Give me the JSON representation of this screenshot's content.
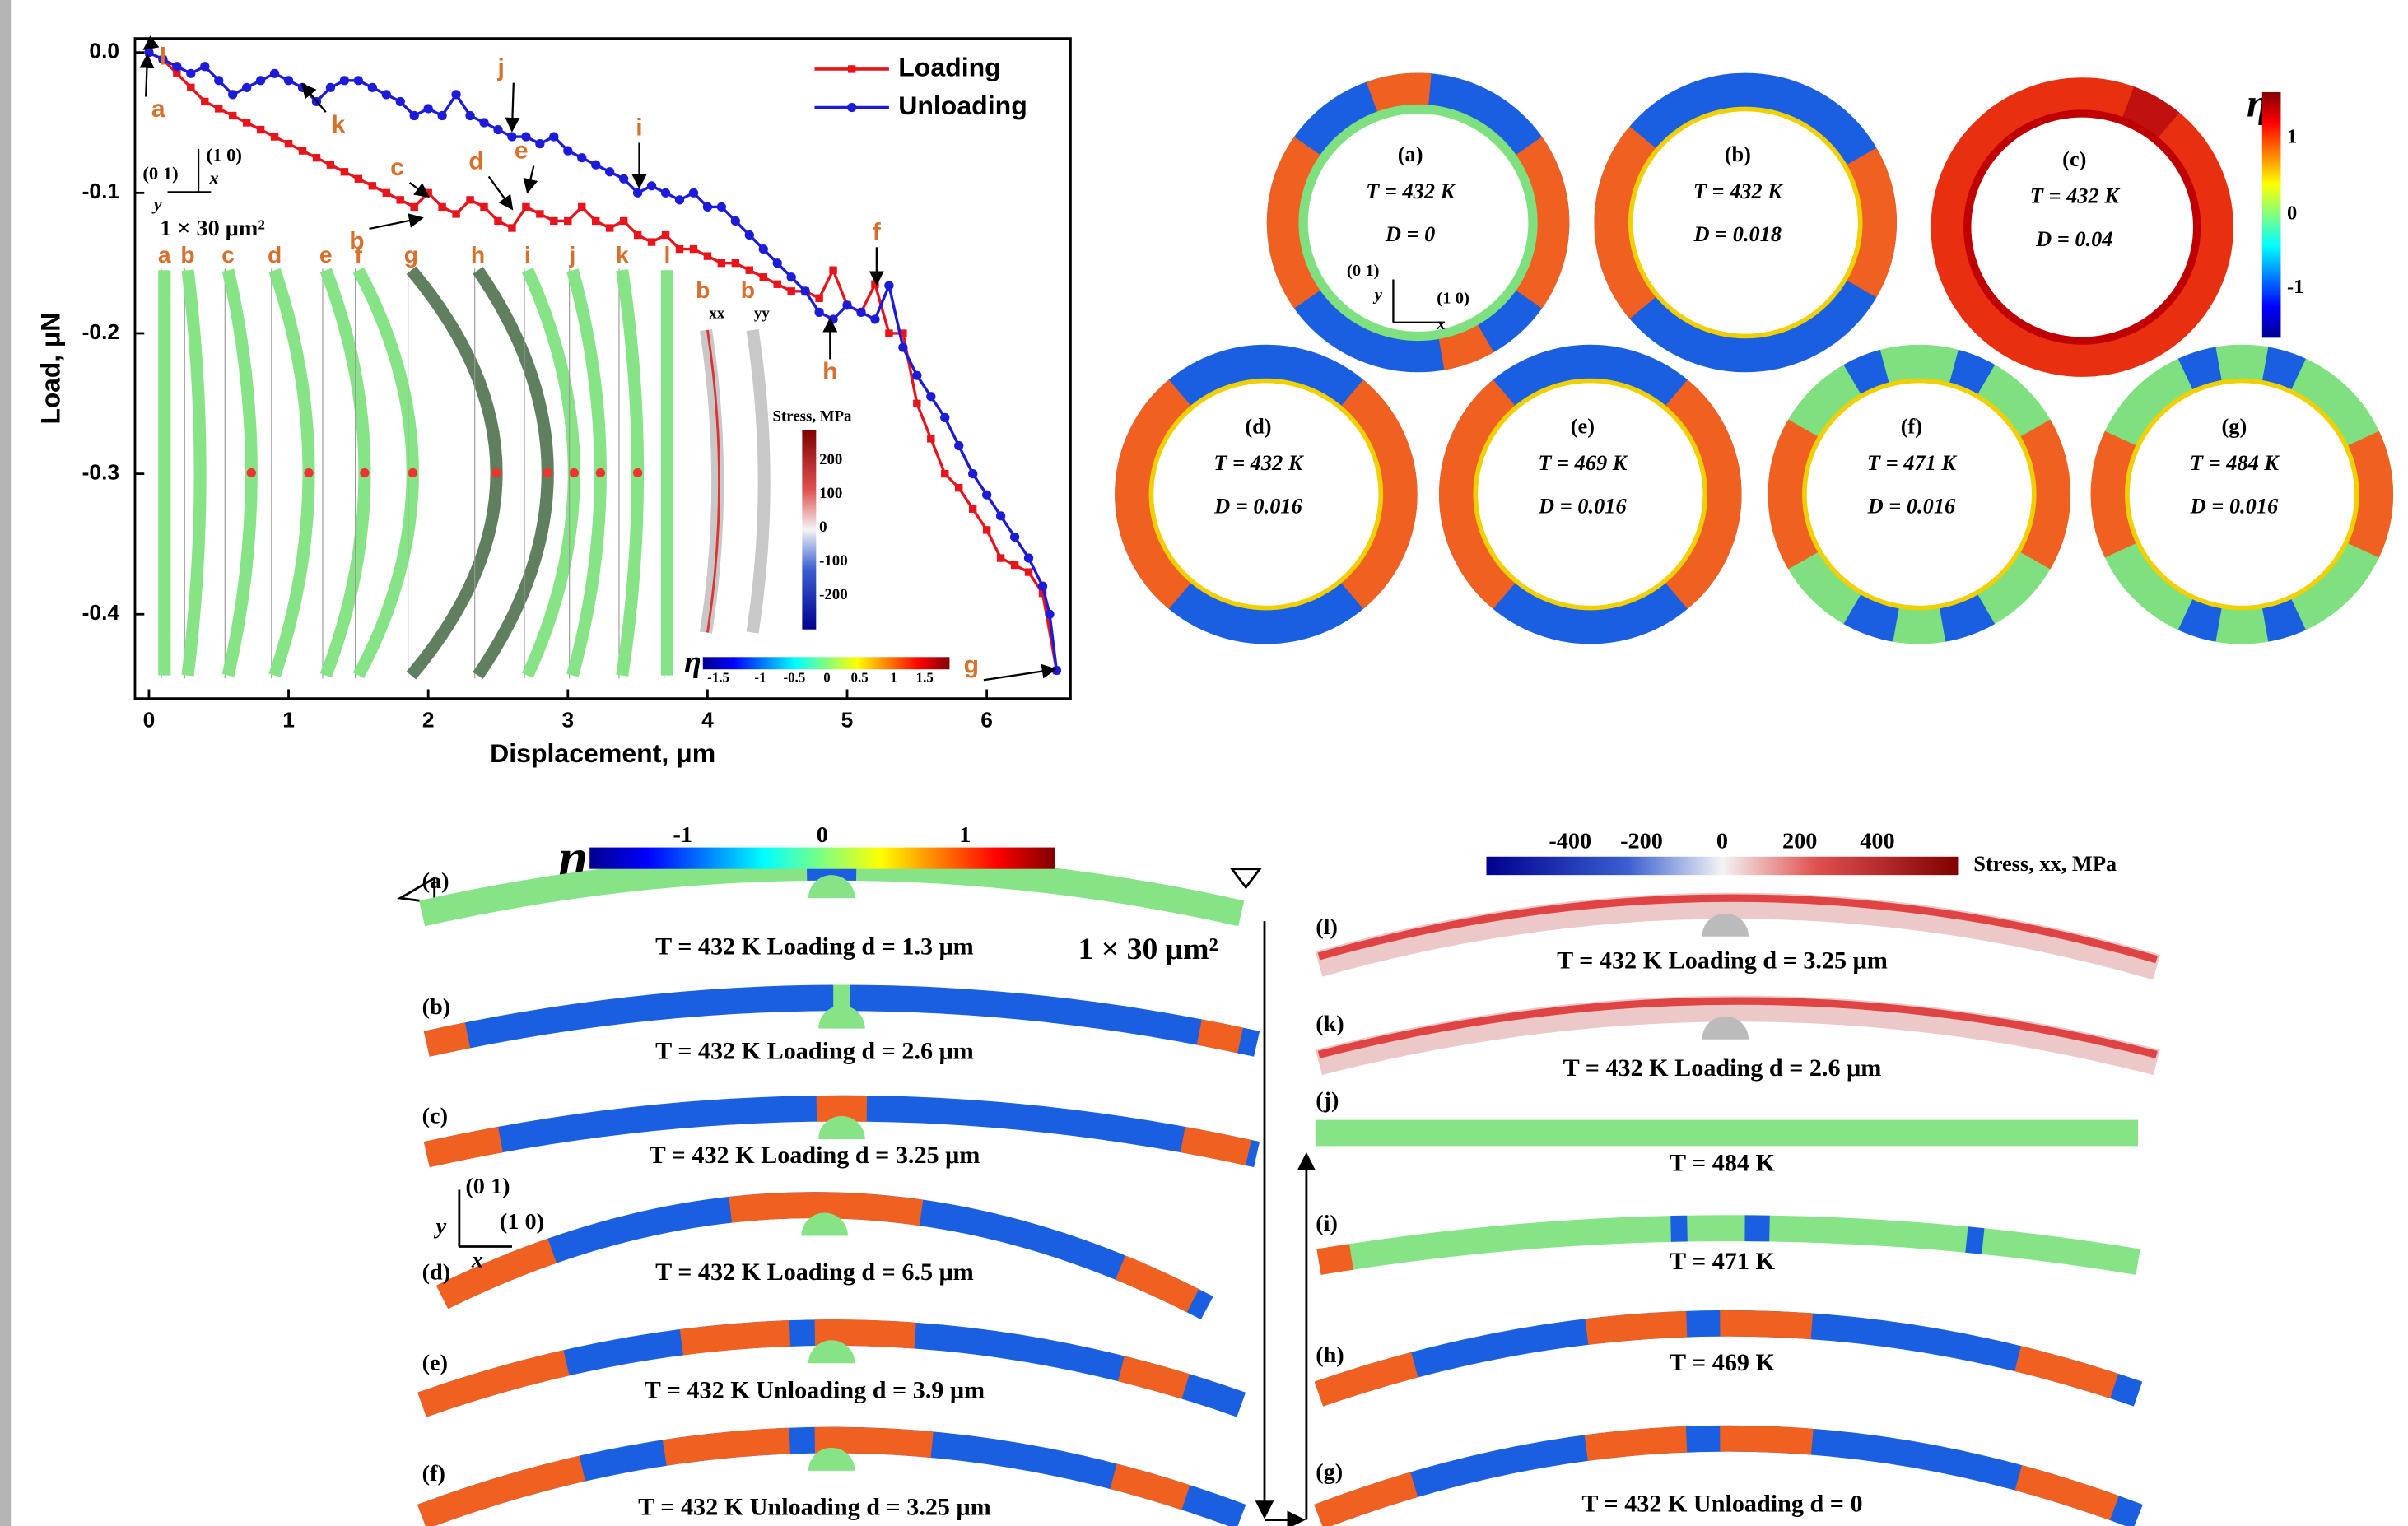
{
  "chart_data": {
    "type": "line",
    "xlabel": "Displacement, μm",
    "ylabel": "Load, μN",
    "xlim": [
      -0.1,
      6.6
    ],
    "ylim": [
      -0.46,
      0.01
    ],
    "xticks": [
      0,
      1,
      2,
      3,
      4,
      5,
      6
    ],
    "yticks": [
      {
        "value": 0,
        "label": "0.0"
      },
      -0.1,
      -0.2,
      -0.3,
      -0.4
    ],
    "legend": "upper right",
    "series": [
      {
        "name": "Loading",
        "color": "#e8141c",
        "marker": "square",
        "x": [
          0,
          0.1,
          0.2,
          0.3,
          0.4,
          0.5,
          0.6,
          0.7,
          0.8,
          0.9,
          1.0,
          1.1,
          1.2,
          1.3,
          1.4,
          1.5,
          1.6,
          1.7,
          1.8,
          1.9,
          2.0,
          2.1,
          2.2,
          2.3,
          2.4,
          2.5,
          2.6,
          2.7,
          2.8,
          2.9,
          3.0,
          3.1,
          3.2,
          3.3,
          3.4,
          3.5,
          3.6,
          3.7,
          3.8,
          3.9,
          4.0,
          4.1,
          4.2,
          4.3,
          4.4,
          4.5,
          4.6,
          4.7,
          4.8,
          4.9,
          5.0,
          5.1,
          5.2,
          5.3,
          5.4,
          5.5,
          5.6,
          5.7,
          5.8,
          5.9,
          6.0,
          6.1,
          6.2,
          6.3,
          6.4,
          6.5
        ],
        "values": [
          0,
          -0.005,
          -0.015,
          -0.025,
          -0.035,
          -0.04,
          -0.045,
          -0.05,
          -0.055,
          -0.06,
          -0.065,
          -0.07,
          -0.075,
          -0.08,
          -0.085,
          -0.09,
          -0.095,
          -0.1,
          -0.105,
          -0.11,
          -0.1,
          -0.11,
          -0.115,
          -0.105,
          -0.11,
          -0.12,
          -0.125,
          -0.11,
          -0.115,
          -0.12,
          -0.12,
          -0.11,
          -0.12,
          -0.125,
          -0.12,
          -0.13,
          -0.135,
          -0.13,
          -0.14,
          -0.14,
          -0.145,
          -0.15,
          -0.15,
          -0.155,
          -0.16,
          -0.165,
          -0.17,
          -0.17,
          -0.175,
          -0.155,
          -0.18,
          -0.185,
          -0.165,
          -0.2,
          -0.2,
          -0.25,
          -0.275,
          -0.3,
          -0.31,
          -0.325,
          -0.34,
          -0.36,
          -0.365,
          -0.37,
          -0.385,
          -0.44
        ]
      },
      {
        "name": "Unloading",
        "color": "#1c1cd8",
        "marker": "circle",
        "x": [
          6.5,
          6.45,
          6.4,
          6.3,
          6.2,
          6.1,
          6.0,
          5.9,
          5.8,
          5.7,
          5.6,
          5.5,
          5.4,
          5.3,
          5.2,
          5.1,
          5.0,
          4.9,
          4.8,
          4.7,
          4.6,
          4.5,
          4.4,
          4.3,
          4.2,
          4.1,
          4.0,
          3.9,
          3.8,
          3.7,
          3.6,
          3.5,
          3.4,
          3.3,
          3.2,
          3.1,
          3.0,
          2.9,
          2.8,
          2.7,
          2.6,
          2.5,
          2.4,
          2.3,
          2.2,
          2.1,
          2.0,
          1.9,
          1.8,
          1.7,
          1.6,
          1.5,
          1.4,
          1.3,
          1.2,
          1.1,
          1.0,
          0.9,
          0.8,
          0.7,
          0.6,
          0.5,
          0.4,
          0.3,
          0.2,
          0.1,
          0
        ],
        "values": [
          -0.44,
          -0.4,
          -0.38,
          -0.36,
          -0.345,
          -0.33,
          -0.315,
          -0.3,
          -0.28,
          -0.26,
          -0.245,
          -0.23,
          -0.21,
          -0.166,
          -0.19,
          -0.185,
          -0.18,
          -0.19,
          -0.185,
          -0.17,
          -0.16,
          -0.15,
          -0.14,
          -0.13,
          -0.12,
          -0.11,
          -0.11,
          -0.1,
          -0.105,
          -0.1,
          -0.095,
          -0.1,
          -0.09,
          -0.085,
          -0.08,
          -0.075,
          -0.07,
          -0.06,
          -0.065,
          -0.06,
          -0.06,
          -0.055,
          -0.05,
          -0.045,
          -0.03,
          -0.045,
          -0.04,
          -0.045,
          -0.035,
          -0.03,
          -0.025,
          -0.02,
          -0.02,
          -0.025,
          -0.035,
          -0.025,
          -0.02,
          -0.015,
          -0.02,
          -0.025,
          -0.03,
          -0.02,
          -0.01,
          -0.015,
          -0.01,
          -0.005,
          0
        ]
      }
    ],
    "annotations": [
      "a",
      "b",
      "c",
      "d",
      "e",
      "f",
      "g",
      "h",
      "i",
      "j",
      "k",
      "l"
    ],
    "inset": {
      "orientation": [
        "(0 1)",
        "(1 0)",
        "x",
        "y"
      ],
      "size": "1 × 30 μm²",
      "strip_labels": [
        "a",
        "b",
        "c",
        "d",
        "e",
        "f",
        "g",
        "h",
        "i",
        "j",
        "k",
        "l"
      ],
      "stress_labels": [
        "b",
        "b"
      ],
      "stress_components": [
        "xx",
        "yy"
      ],
      "stress_title": "Stress, MPa",
      "stress_ticks": [
        "200",
        "100",
        "0",
        "-100",
        "-200"
      ],
      "eta_symbol": "η",
      "eta_ticks": [
        "-1.5",
        "-1",
        "-0.5",
        "0",
        "0.5",
        "1",
        "1.5"
      ]
    }
  },
  "rings": {
    "panels": [
      {
        "label": "(a)",
        "T": "T = 432 K",
        "D": "D = 0"
      },
      {
        "label": "(b)",
        "T": "T = 432 K",
        "D": "D = 0.018"
      },
      {
        "label": "(c)",
        "T": "T = 432 K",
        "D": "D = 0.04"
      },
      {
        "label": "(d)",
        "T": "T = 432 K",
        "D": "D = 0.016"
      },
      {
        "label": "(e)",
        "T": "T = 469 K",
        "D": "D = 0.016"
      },
      {
        "label": "(f)",
        "T": "T = 471 K",
        "D": "D = 0.016"
      },
      {
        "label": "(g)",
        "T": "T = 484 K",
        "D": "D = 0.016"
      }
    ],
    "axes": [
      "(0 1)",
      "y",
      "(1 0)",
      "x"
    ],
    "eta_symbol": "η",
    "eta_ticks": [
      "1",
      "0",
      "-1"
    ]
  },
  "beams": {
    "eta_symbol": "η",
    "eta_ticks": [
      "-1",
      "0",
      "1"
    ],
    "size": "1 × 30 μm²",
    "axes": [
      "(0 1)",
      "(1 0)",
      "y",
      "x"
    ],
    "stress_ticks": [
      "-400",
      "-200",
      "0",
      "200",
      "400"
    ],
    "stress_title": "Stress, xx, MPa",
    "left": [
      {
        "label": "(a)",
        "caption": "T = 432 K  Loading  d = 1.3 μm"
      },
      {
        "label": "(b)",
        "caption": "T = 432 K  Loading  d = 2.6 μm"
      },
      {
        "label": "(c)",
        "caption": "T = 432 K  Loading  d = 3.25 μm"
      },
      {
        "label": "(d)",
        "caption": "T = 432 K  Loading  d = 6.5 μm"
      },
      {
        "label": "(e)",
        "caption": "T = 432 K  Unloading  d = 3.9 μm"
      },
      {
        "label": "(f)",
        "caption": "T = 432 K  Unloading  d = 3.25 μm"
      }
    ],
    "right": [
      {
        "label": "(l)",
        "caption": "T = 432 K  Loading  d = 3.25 μm"
      },
      {
        "label": "(k)",
        "caption": "T = 432 K  Loading  d = 2.6 μm"
      },
      {
        "label": "(j)",
        "caption": "T = 484 K"
      },
      {
        "label": "(i)",
        "caption": "T = 471 K"
      },
      {
        "label": "(h)",
        "caption": "T = 469 K"
      },
      {
        "label": "(g)",
        "caption": "T = 432 K  Unloading  d = 0"
      }
    ]
  }
}
